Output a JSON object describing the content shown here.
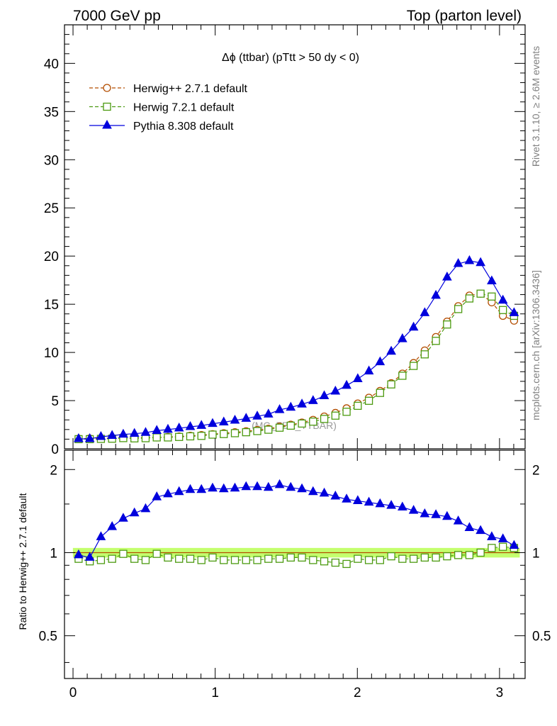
{
  "header": {
    "left": "7000 GeV pp",
    "right": "Top (parton level)"
  },
  "side_labels": {
    "rivet": "Rivet 3.1.10, ≥ 2.6M events",
    "mcplots": "mcplots.cern.ch [arXiv:1306.3436]"
  },
  "chart_data": {
    "type": "line",
    "title": "Δϕ (ttbar) (pTtt > 50 dy < 0)",
    "watermark": "(MC_FBA_TTBAR)",
    "x": [
      0.0393,
      0.1178,
      0.1963,
      0.2749,
      0.3534,
      0.432,
      0.5105,
      0.589,
      0.6676,
      0.7461,
      0.8247,
      0.9032,
      0.9817,
      1.0603,
      1.1388,
      1.2174,
      1.2959,
      1.3744,
      1.453,
      1.5315,
      1.6101,
      1.6886,
      1.7671,
      1.8457,
      1.9242,
      2.0028,
      2.0813,
      2.1598,
      2.2384,
      2.3169,
      2.3955,
      2.474,
      2.5525,
      2.6311,
      2.7096,
      2.7882,
      2.8667,
      2.9452,
      3.0238,
      3.1023
    ],
    "main_panel": {
      "ylim": [
        0,
        44
      ],
      "yticks": [
        0,
        5,
        10,
        15,
        20,
        25,
        30,
        35,
        40
      ],
      "ytick_labels": [
        "0",
        "5",
        "10",
        "15",
        "20",
        "25",
        "30",
        "35",
        "40"
      ]
    },
    "ratio_panel": {
      "ylabel": "Ratio to Herwig++ 2.7.1 default",
      "yscale": "log",
      "ylim": [
        0.35,
        2.35
      ],
      "yticks": [
        0.5,
        1,
        2
      ],
      "ytick_labels": [
        "0.5",
        "1",
        "2"
      ],
      "band": [
        0.96,
        1.04
      ]
    },
    "xlim": [
      -0.06,
      3.18
    ],
    "xticks": [
      0,
      1,
      2,
      3
    ],
    "xtick_labels": [
      "0",
      "1",
      "2",
      "3"
    ],
    "series": [
      {
        "name": "Herwig++ 2.7.1 default",
        "color": "#b34d00",
        "marker": "circle",
        "dashed": true,
        "values": [
          1.05,
          1.07,
          1.1,
          1.1,
          1.12,
          1.13,
          1.16,
          1.18,
          1.23,
          1.28,
          1.35,
          1.42,
          1.52,
          1.62,
          1.72,
          1.82,
          1.95,
          2.08,
          2.3,
          2.5,
          2.72,
          3.0,
          3.35,
          3.72,
          4.2,
          4.7,
          5.3,
          6.0,
          6.8,
          7.8,
          8.9,
          10.2,
          11.6,
          13.2,
          14.8,
          15.9,
          16.1,
          15.2,
          13.8,
          13.3
        ],
        "ratio": [
          1.0,
          1.0,
          1.0,
          1.0,
          1.0,
          1.0,
          1.0,
          1.0,
          1.0,
          1.0,
          1.0,
          1.0,
          1.0,
          1.0,
          1.0,
          1.0,
          1.0,
          1.0,
          1.0,
          1.0,
          1.0,
          1.0,
          1.0,
          1.0,
          1.0,
          1.0,
          1.0,
          1.0,
          1.0,
          1.0,
          1.0,
          1.0,
          1.0,
          1.0,
          1.0,
          1.0,
          1.0,
          1.0,
          1.0,
          1.0
        ]
      },
      {
        "name": "Herwig 7.2.1 default",
        "color": "#4c9a10",
        "marker": "square",
        "dashed": true,
        "values": [
          1.0,
          1.0,
          1.03,
          1.05,
          1.11,
          1.08,
          1.1,
          1.18,
          1.18,
          1.23,
          1.29,
          1.34,
          1.47,
          1.53,
          1.62,
          1.72,
          1.84,
          1.98,
          2.19,
          2.4,
          2.62,
          2.82,
          3.1,
          3.44,
          3.84,
          4.46,
          4.98,
          5.8,
          6.68,
          7.58,
          8.6,
          9.8,
          11.2,
          12.9,
          14.5,
          15.6,
          16.1,
          15.8,
          14.4,
          13.8
        ],
        "ratio": [
          0.95,
          0.93,
          0.94,
          0.95,
          0.99,
          0.95,
          0.94,
          0.99,
          0.96,
          0.95,
          0.95,
          0.94,
          0.96,
          0.94,
          0.94,
          0.94,
          0.94,
          0.95,
          0.95,
          0.96,
          0.96,
          0.94,
          0.93,
          0.92,
          0.91,
          0.95,
          0.94,
          0.94,
          0.97,
          0.95,
          0.95,
          0.96,
          0.96,
          0.97,
          0.98,
          0.98,
          1.0,
          1.04,
          1.05,
          1.04
        ]
      },
      {
        "name": "Pythia 8.308 default",
        "color": "#0000dd",
        "marker": "triangle",
        "dashed": false,
        "values": [
          1.03,
          1.03,
          1.25,
          1.36,
          1.49,
          1.57,
          1.67,
          1.88,
          2.0,
          2.13,
          2.28,
          2.4,
          2.6,
          2.76,
          2.94,
          3.14,
          3.37,
          3.58,
          4.04,
          4.29,
          4.62,
          4.98,
          5.48,
          5.96,
          6.56,
          7.25,
          8.05,
          9.0,
          10.1,
          11.4,
          12.6,
          14.1,
          15.9,
          17.8,
          19.2,
          19.5,
          19.3,
          17.4,
          15.4,
          14.1
        ],
        "ratio": [
          0.98,
          0.96,
          1.14,
          1.24,
          1.33,
          1.39,
          1.44,
          1.59,
          1.63,
          1.66,
          1.69,
          1.69,
          1.71,
          1.7,
          1.71,
          1.73,
          1.73,
          1.72,
          1.76,
          1.72,
          1.7,
          1.66,
          1.64,
          1.6,
          1.56,
          1.54,
          1.52,
          1.5,
          1.48,
          1.46,
          1.42,
          1.38,
          1.37,
          1.35,
          1.3,
          1.23,
          1.2,
          1.14,
          1.12,
          1.06
        ]
      }
    ]
  }
}
